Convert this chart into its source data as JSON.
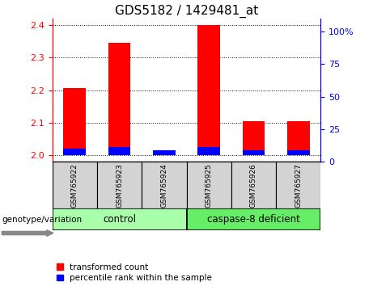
{
  "title": "GDS5182 / 1429481_at",
  "samples": [
    "GSM765922",
    "GSM765923",
    "GSM765924",
    "GSM765925",
    "GSM765926",
    "GSM765927"
  ],
  "group_labels": [
    "control",
    "caspase-8 deficient"
  ],
  "group_colors": [
    "#aaffaa",
    "#66ee66"
  ],
  "red_values": [
    2.205,
    2.345,
    2.0,
    2.4,
    2.105,
    2.105
  ],
  "blue_percentiles": [
    5,
    6,
    4,
    6,
    4,
    4
  ],
  "ylim_left": [
    1.98,
    2.42
  ],
  "ylim_right": [
    0,
    110
  ],
  "yticks_left": [
    2.0,
    2.1,
    2.2,
    2.3,
    2.4
  ],
  "yticks_right": [
    0,
    25,
    50,
    75,
    100
  ],
  "ytick_labels_right": [
    "0",
    "25",
    "50",
    "75",
    "100%"
  ],
  "bar_width": 0.5,
  "bar_base": 2.0,
  "title_fontsize": 11,
  "tick_fontsize": 8,
  "legend_fontsize": 7.5,
  "legend_red": "transformed count",
  "legend_blue": "percentile rank within the sample"
}
